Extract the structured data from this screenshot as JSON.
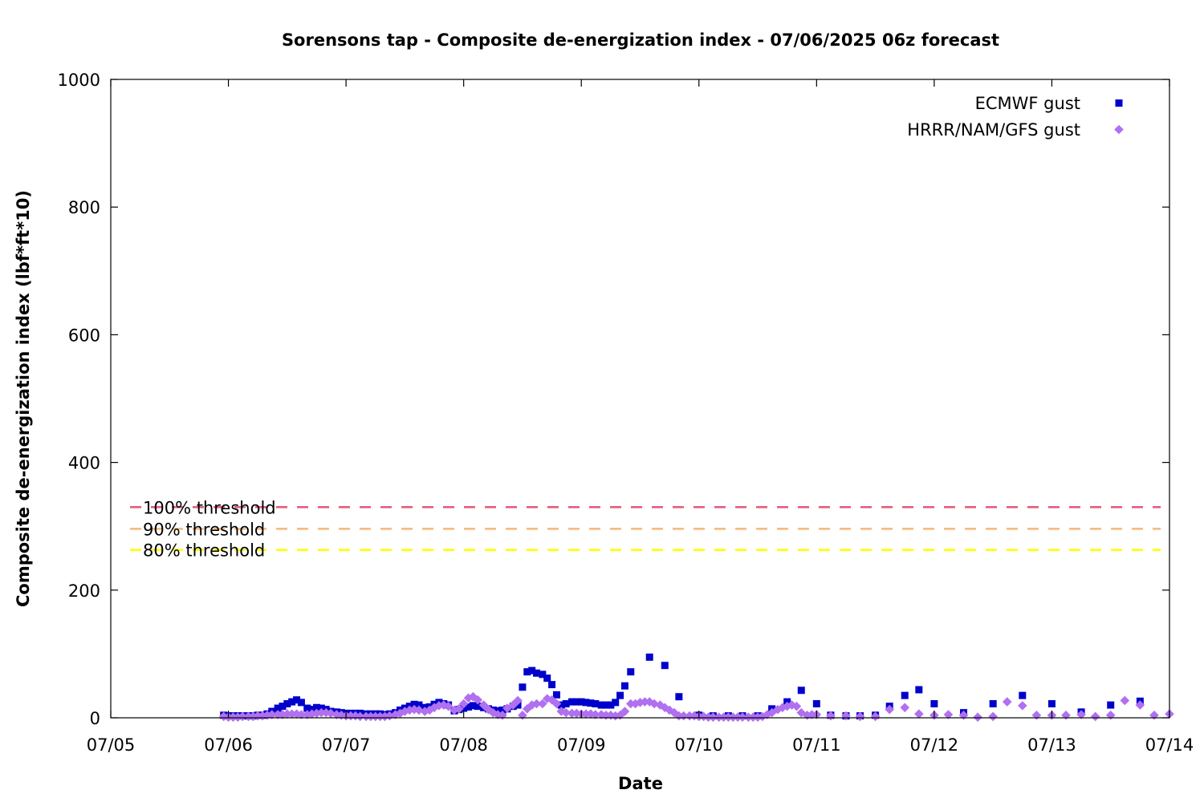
{
  "chart_data": {
    "type": "scatter",
    "title": "Sorensons tap - Composite de-energization index - 07/06/2025 06z forecast",
    "xlabel": "Date",
    "ylabel": "Composite de-energization index (lbf*ft*10)",
    "xlim": [
      "07/05",
      "07/14"
    ],
    "ylim": [
      0,
      1000
    ],
    "x_ticks": [
      "07/05",
      "07/06",
      "07/07",
      "07/08",
      "07/09",
      "07/10",
      "07/11",
      "07/12",
      "07/13",
      "07/14"
    ],
    "y_ticks": [
      0,
      200,
      400,
      600,
      800,
      1000
    ],
    "grid": false,
    "legend_position": "top-right",
    "thresholds": [
      {
        "label": "100% threshold",
        "value": 330,
        "color": "#e0607e"
      },
      {
        "label": "90% threshold",
        "value": 296,
        "color": "#f5b878"
      },
      {
        "label": "80% threshold",
        "value": 263,
        "color": "#ffff00"
      }
    ],
    "series": [
      {
        "name": "ECMWF gust",
        "marker": "square",
        "color": "#0000cc",
        "x_unit": "days since 07/05 00z",
        "points": [
          [
            0.96,
            4
          ],
          [
            1.0,
            3
          ],
          [
            1.04,
            3
          ],
          [
            1.08,
            3
          ],
          [
            1.12,
            3
          ],
          [
            1.17,
            3
          ],
          [
            1.21,
            3
          ],
          [
            1.25,
            4
          ],
          [
            1.29,
            4
          ],
          [
            1.33,
            6
          ],
          [
            1.37,
            10
          ],
          [
            1.42,
            15
          ],
          [
            1.46,
            18
          ],
          [
            1.5,
            22
          ],
          [
            1.54,
            25
          ],
          [
            1.58,
            28
          ],
          [
            1.62,
            24
          ],
          [
            1.67,
            15
          ],
          [
            1.71,
            13
          ],
          [
            1.75,
            16
          ],
          [
            1.79,
            15
          ],
          [
            1.83,
            13
          ],
          [
            1.87,
            10
          ],
          [
            1.92,
            9
          ],
          [
            1.96,
            8
          ],
          [
            2.0,
            7
          ],
          [
            2.04,
            7
          ],
          [
            2.08,
            7
          ],
          [
            2.12,
            7
          ],
          [
            2.17,
            6
          ],
          [
            2.21,
            6
          ],
          [
            2.25,
            6
          ],
          [
            2.29,
            6
          ],
          [
            2.33,
            5
          ],
          [
            2.37,
            6
          ],
          [
            2.42,
            8
          ],
          [
            2.46,
            12
          ],
          [
            2.5,
            15
          ],
          [
            2.54,
            18
          ],
          [
            2.58,
            21
          ],
          [
            2.62,
            20
          ],
          [
            2.67,
            16
          ],
          [
            2.71,
            17
          ],
          [
            2.75,
            21
          ],
          [
            2.79,
            24
          ],
          [
            2.83,
            22
          ],
          [
            2.87,
            20
          ],
          [
            2.92,
            11
          ],
          [
            2.96,
            13
          ],
          [
            3.0,
            15
          ],
          [
            3.04,
            17
          ],
          [
            3.08,
            19
          ],
          [
            3.12,
            18
          ],
          [
            3.17,
            16
          ],
          [
            3.21,
            14
          ],
          [
            3.25,
            12
          ],
          [
            3.29,
            11
          ],
          [
            3.33,
            12
          ],
          [
            3.37,
            14
          ],
          [
            3.42,
            18
          ],
          [
            3.46,
            20
          ],
          [
            3.5,
            48
          ],
          [
            3.54,
            72
          ],
          [
            3.58,
            74
          ],
          [
            3.62,
            70
          ],
          [
            3.67,
            68
          ],
          [
            3.71,
            62
          ],
          [
            3.75,
            52
          ],
          [
            3.79,
            36
          ],
          [
            3.83,
            20
          ],
          [
            3.87,
            22
          ],
          [
            3.92,
            25
          ],
          [
            3.96,
            25
          ],
          [
            4.0,
            25
          ],
          [
            4.04,
            24
          ],
          [
            4.08,
            23
          ],
          [
            4.12,
            22
          ],
          [
            4.17,
            20
          ],
          [
            4.21,
            20
          ],
          [
            4.25,
            20
          ],
          [
            4.29,
            24
          ],
          [
            4.33,
            35
          ],
          [
            4.37,
            50
          ],
          [
            4.42,
            72
          ],
          [
            4.58,
            95
          ],
          [
            4.71,
            82
          ],
          [
            4.83,
            33
          ],
          [
            5.0,
            4
          ],
          [
            5.12,
            3
          ],
          [
            5.25,
            3
          ],
          [
            5.37,
            3
          ],
          [
            5.5,
            3
          ],
          [
            5.62,
            14
          ],
          [
            5.75,
            25
          ],
          [
            5.87,
            43
          ],
          [
            6.0,
            22
          ],
          [
            6.12,
            4
          ],
          [
            6.25,
            3
          ],
          [
            6.37,
            3
          ],
          [
            6.5,
            4
          ],
          [
            6.62,
            18
          ],
          [
            6.75,
            35
          ],
          [
            6.87,
            44
          ],
          [
            7.0,
            22
          ],
          [
            7.25,
            8
          ],
          [
            7.5,
            22
          ],
          [
            7.75,
            35
          ],
          [
            8.0,
            22
          ],
          [
            8.25,
            9
          ],
          [
            8.5,
            20
          ],
          [
            8.75,
            26
          ]
        ]
      },
      {
        "name": "HRRR/NAM/GFS gust",
        "marker": "diamond",
        "color": "#b070f0",
        "x_unit": "days since 07/05 00z",
        "points": [
          [
            0.96,
            2
          ],
          [
            1.0,
            1
          ],
          [
            1.04,
            1
          ],
          [
            1.08,
            1
          ],
          [
            1.12,
            2
          ],
          [
            1.17,
            2
          ],
          [
            1.21,
            2
          ],
          [
            1.25,
            3
          ],
          [
            1.29,
            3
          ],
          [
            1.33,
            4
          ],
          [
            1.37,
            5
          ],
          [
            1.42,
            5
          ],
          [
            1.46,
            5
          ],
          [
            1.5,
            6
          ],
          [
            1.54,
            6
          ],
          [
            1.58,
            6
          ],
          [
            1.62,
            5
          ],
          [
            1.67,
            5
          ],
          [
            1.71,
            6
          ],
          [
            1.75,
            7
          ],
          [
            1.79,
            8
          ],
          [
            1.83,
            8
          ],
          [
            1.87,
            7
          ],
          [
            1.92,
            5
          ],
          [
            1.96,
            4
          ],
          [
            2.0,
            3
          ],
          [
            2.04,
            3
          ],
          [
            2.08,
            3
          ],
          [
            2.12,
            2
          ],
          [
            2.17,
            2
          ],
          [
            2.21,
            2
          ],
          [
            2.25,
            2
          ],
          [
            2.29,
            2
          ],
          [
            2.33,
            2
          ],
          [
            2.37,
            3
          ],
          [
            2.42,
            5
          ],
          [
            2.46,
            7
          ],
          [
            2.5,
            10
          ],
          [
            2.54,
            12
          ],
          [
            2.58,
            13
          ],
          [
            2.62,
            12
          ],
          [
            2.67,
            10
          ],
          [
            2.71,
            12
          ],
          [
            2.75,
            16
          ],
          [
            2.79,
            19
          ],
          [
            2.83,
            20
          ],
          [
            2.87,
            18
          ],
          [
            2.92,
            12
          ],
          [
            2.96,
            14
          ],
          [
            3.0,
            22
          ],
          [
            3.04,
            31
          ],
          [
            3.08,
            33
          ],
          [
            3.12,
            28
          ],
          [
            3.17,
            20
          ],
          [
            3.21,
            13
          ],
          [
            3.25,
            8
          ],
          [
            3.29,
            5
          ],
          [
            3.33,
            4
          ],
          [
            3.37,
            15
          ],
          [
            3.42,
            20
          ],
          [
            3.46,
            27
          ],
          [
            3.5,
            4
          ],
          [
            3.54,
            14
          ],
          [
            3.58,
            20
          ],
          [
            3.62,
            22
          ],
          [
            3.67,
            22
          ],
          [
            3.71,
            30
          ],
          [
            3.75,
            28
          ],
          [
            3.79,
            22
          ],
          [
            3.83,
            10
          ],
          [
            3.87,
            8
          ],
          [
            3.92,
            7
          ],
          [
            3.96,
            7
          ],
          [
            4.0,
            6
          ],
          [
            4.04,
            6
          ],
          [
            4.08,
            6
          ],
          [
            4.12,
            5
          ],
          [
            4.17,
            5
          ],
          [
            4.21,
            4
          ],
          [
            4.25,
            4
          ],
          [
            4.29,
            3
          ],
          [
            4.33,
            4
          ],
          [
            4.37,
            10
          ],
          [
            4.42,
            22
          ],
          [
            4.46,
            22
          ],
          [
            4.5,
            24
          ],
          [
            4.54,
            25
          ],
          [
            4.58,
            25
          ],
          [
            4.62,
            22
          ],
          [
            4.67,
            20
          ],
          [
            4.71,
            16
          ],
          [
            4.75,
            12
          ],
          [
            4.79,
            8
          ],
          [
            4.83,
            3
          ],
          [
            4.87,
            3
          ],
          [
            4.92,
            3
          ],
          [
            4.96,
            3
          ],
          [
            5.0,
            2
          ],
          [
            5.04,
            2
          ],
          [
            5.08,
            1
          ],
          [
            5.12,
            1
          ],
          [
            5.17,
            1
          ],
          [
            5.21,
            1
          ],
          [
            5.25,
            1
          ],
          [
            5.29,
            1
          ],
          [
            5.33,
            1
          ],
          [
            5.37,
            1
          ],
          [
            5.42,
            1
          ],
          [
            5.46,
            1
          ],
          [
            5.5,
            1
          ],
          [
            5.54,
            2
          ],
          [
            5.58,
            5
          ],
          [
            5.62,
            8
          ],
          [
            5.67,
            13
          ],
          [
            5.71,
            16
          ],
          [
            5.75,
            18
          ],
          [
            5.79,
            20
          ],
          [
            5.83,
            18
          ],
          [
            5.87,
            8
          ],
          [
            5.92,
            4
          ],
          [
            5.96,
            5
          ],
          [
            6.0,
            5
          ],
          [
            6.12,
            3
          ],
          [
            6.25,
            3
          ],
          [
            6.37,
            2
          ],
          [
            6.5,
            2
          ],
          [
            6.62,
            13
          ],
          [
            6.75,
            16
          ],
          [
            6.87,
            6
          ],
          [
            7.0,
            4
          ],
          [
            7.12,
            5
          ],
          [
            7.25,
            4
          ],
          [
            7.37,
            1
          ],
          [
            7.5,
            2
          ],
          [
            7.62,
            25
          ],
          [
            7.75,
            19
          ],
          [
            7.87,
            4
          ],
          [
            8.0,
            4
          ],
          [
            8.12,
            4
          ],
          [
            8.25,
            5
          ],
          [
            8.37,
            2
          ],
          [
            8.5,
            4
          ],
          [
            8.62,
            27
          ],
          [
            8.75,
            20
          ],
          [
            8.87,
            4
          ],
          [
            9.0,
            6
          ]
        ]
      }
    ]
  }
}
